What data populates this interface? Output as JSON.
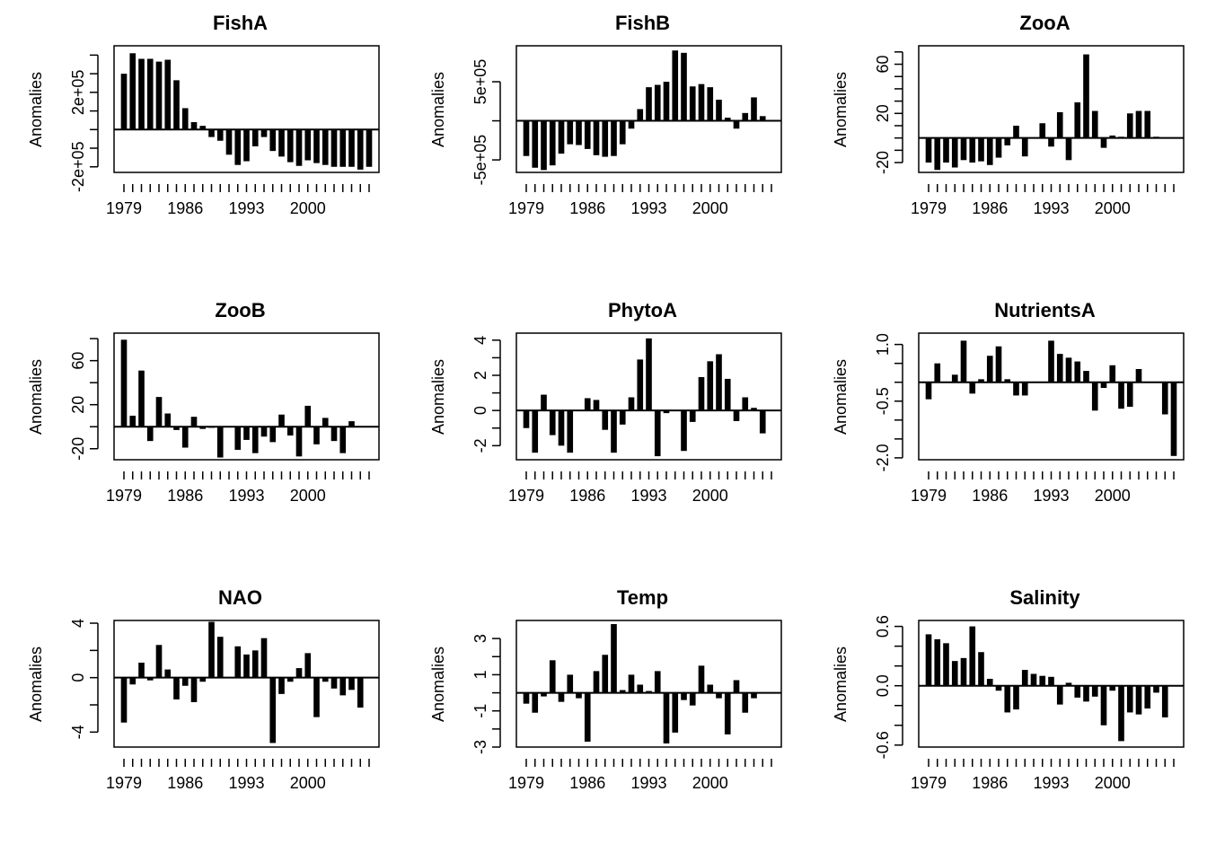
{
  "figure": {
    "panels_per_row": 3
  },
  "chart_data": [
    {
      "type": "bar",
      "title": "FishA",
      "ylabel": "Anomalies",
      "years": [
        1979,
        1980,
        1981,
        1982,
        1983,
        1984,
        1985,
        1986,
        1987,
        1988,
        1989,
        1990,
        1991,
        1992,
        1993,
        1994,
        1995,
        1996,
        1997,
        1998,
        1999,
        2000,
        2001,
        2002,
        2003,
        2004,
        2005,
        2006,
        2007
      ],
      "values": [
        300000,
        410000,
        380000,
        380000,
        365000,
        375000,
        265000,
        115000,
        40000,
        20000,
        -40000,
        -60000,
        -135000,
        -190000,
        -170000,
        -90000,
        -40000,
        -115000,
        -145000,
        -175000,
        -195000,
        -165000,
        -180000,
        -190000,
        -200000,
        -200000,
        -200000,
        -215000,
        -200000
      ],
      "ylim": [
        -230000,
        450000
      ],
      "yticks": [
        -200000,
        -100000,
        0,
        100000,
        200000,
        300000,
        400000
      ],
      "ytick_labels": [
        "-2e+05",
        "",
        "",
        "",
        "2e+05",
        "",
        ""
      ],
      "xtick_labels": [
        "1979",
        "1986",
        "1993",
        "2000"
      ]
    },
    {
      "type": "bar",
      "title": "FishB",
      "ylabel": "Anomalies",
      "years": [
        1979,
        1980,
        1981,
        1982,
        1983,
        1984,
        1985,
        1986,
        1987,
        1988,
        1989,
        1990,
        1991,
        1992,
        1993,
        1994,
        1995,
        1996,
        1997,
        1998,
        1999,
        2000,
        2001,
        2002,
        2003,
        2004,
        2005,
        2006,
        2007
      ],
      "values": [
        -450000,
        -600000,
        -630000,
        -570000,
        -420000,
        -300000,
        -310000,
        -360000,
        -440000,
        -460000,
        -450000,
        -300000,
        -100000,
        150000,
        430000,
        460000,
        500000,
        900000,
        870000,
        440000,
        470000,
        430000,
        270000,
        40000,
        -100000,
        100000,
        300000,
        60000,
        0
      ],
      "ylim": [
        -660000,
        960000
      ],
      "yticks": [
        -500000,
        0,
        500000
      ],
      "ytick_labels": [
        "-5e+05",
        "",
        "5e+05"
      ],
      "xtick_labels": [
        "1979",
        "1986",
        "1993",
        "2000"
      ]
    },
    {
      "type": "bar",
      "title": "ZooA",
      "ylabel": "Anomalies",
      "years": [
        1979,
        1980,
        1981,
        1982,
        1983,
        1984,
        1985,
        1986,
        1987,
        1988,
        1989,
        1990,
        1991,
        1992,
        1993,
        1994,
        1995,
        1996,
        1997,
        1998,
        1999,
        2000,
        2001,
        2002,
        2003,
        2004,
        2005,
        2006,
        2007
      ],
      "values": [
        -20,
        -26,
        -20,
        -24,
        -18,
        -20,
        -19,
        -22,
        -16,
        -6,
        10,
        -15,
        0,
        12,
        -7,
        21,
        -18,
        29,
        68,
        22,
        -8,
        2,
        1,
        20,
        22,
        22,
        1,
        0,
        0
      ],
      "ylim": [
        -28,
        75
      ],
      "yticks": [
        -20,
        -10,
        0,
        10,
        20,
        30,
        40,
        50,
        60,
        70
      ],
      "ytick_labels": [
        "-20",
        "",
        "",
        "",
        "20",
        "",
        "",
        "",
        "60",
        ""
      ],
      "xtick_labels": [
        "1979",
        "1986",
        "1993",
        "2000"
      ]
    },
    {
      "type": "bar",
      "title": "ZooB",
      "ylabel": "Anomalies",
      "years": [
        1979,
        1980,
        1981,
        1982,
        1983,
        1984,
        1985,
        1986,
        1987,
        1988,
        1989,
        1990,
        1991,
        1992,
        1993,
        1994,
        1995,
        1996,
        1997,
        1998,
        1999,
        2000,
        2001,
        2002,
        2003,
        2004,
        2005,
        2006,
        2007
      ],
      "values": [
        79,
        10,
        51,
        -13,
        27,
        12,
        -3,
        -19,
        9,
        -2,
        -1,
        -28,
        0,
        -21,
        -12,
        -24,
        -9,
        -14,
        11,
        -8,
        -27,
        19,
        -16,
        8,
        -13,
        -24,
        5,
        0,
        0
      ],
      "ylim": [
        -30,
        85
      ],
      "yticks": [
        -20,
        0,
        20,
        40,
        60,
        80
      ],
      "ytick_labels": [
        "-20",
        "",
        "20",
        "",
        "60",
        ""
      ],
      "xtick_labels": [
        "1979",
        "1986",
        "1993",
        "2000"
      ]
    },
    {
      "type": "bar",
      "title": "PhytoA",
      "ylabel": "Anomalies",
      "years": [
        1979,
        1980,
        1981,
        1982,
        1983,
        1984,
        1985,
        1986,
        1987,
        1988,
        1989,
        1990,
        1991,
        1992,
        1993,
        1994,
        1995,
        1996,
        1997,
        1998,
        1999,
        2000,
        2001,
        2002,
        2003,
        2004,
        2005,
        2006,
        2007
      ],
      "values": [
        -1.0,
        -2.4,
        0.9,
        -1.4,
        -2.0,
        -2.4,
        0.0,
        0.7,
        0.6,
        -1.1,
        -2.4,
        -0.8,
        0.75,
        2.9,
        4.1,
        -2.6,
        -0.15,
        0.0,
        -2.3,
        -0.65,
        1.9,
        2.8,
        3.2,
        1.8,
        -0.6,
        0.75,
        0.15,
        -1.3,
        0.0
      ],
      "ylim": [
        -2.8,
        4.4
      ],
      "yticks": [
        -2,
        -1,
        0,
        1,
        2,
        3,
        4
      ],
      "ytick_labels": [
        "-2",
        "",
        "0",
        "",
        "2",
        "",
        "4"
      ],
      "xtick_labels": [
        "1979",
        "1986",
        "1993",
        "2000"
      ]
    },
    {
      "type": "bar",
      "title": "NutrientsA",
      "ylabel": "Anomalies",
      "years": [
        1979,
        1980,
        1981,
        1982,
        1983,
        1984,
        1985,
        1986,
        1987,
        1988,
        1989,
        1990,
        1991,
        1992,
        1993,
        1994,
        1995,
        1996,
        1997,
        1998,
        1999,
        2000,
        2001,
        2002,
        2003,
        2004,
        2005,
        2006,
        2007
      ],
      "values": [
        -0.45,
        0.5,
        0.0,
        0.2,
        1.1,
        -0.3,
        0.08,
        0.7,
        0.95,
        0.08,
        -0.35,
        -0.35,
        0.0,
        0.0,
        1.1,
        0.75,
        0.65,
        0.55,
        0.3,
        -0.75,
        -0.15,
        0.45,
        -0.7,
        -0.65,
        0.35,
        0.0,
        0.0,
        -0.85,
        -1.95
      ],
      "ylim": [
        -2.05,
        1.3
      ],
      "yticks": [
        -2.0,
        -1.5,
        -1.0,
        -0.5,
        0.0,
        0.5,
        1.0
      ],
      "ytick_labels": [
        "-2.0",
        "",
        "",
        "-0.5",
        "",
        "",
        "1.0"
      ],
      "xtick_labels": [
        "1979",
        "1986",
        "1993",
        "2000"
      ]
    },
    {
      "type": "bar",
      "title": "NAO",
      "ylabel": "Anomalies",
      "years": [
        1979,
        1980,
        1981,
        1982,
        1983,
        1984,
        1985,
        1986,
        1987,
        1988,
        1989,
        1990,
        1991,
        1992,
        1993,
        1994,
        1995,
        1996,
        1997,
        1998,
        1999,
        2000,
        2001,
        2002,
        2003,
        2004,
        2005,
        2006,
        2007
      ],
      "values": [
        -3.3,
        -0.5,
        1.1,
        -0.2,
        2.4,
        0.6,
        -1.6,
        -0.6,
        -1.8,
        -0.3,
        4.1,
        3.0,
        0.0,
        2.3,
        1.7,
        2.0,
        2.9,
        -4.8,
        -1.2,
        -0.3,
        0.7,
        1.8,
        -2.9,
        -0.3,
        -0.8,
        -1.3,
        -0.9,
        -2.2,
        0.0
      ],
      "ylim": [
        -5.1,
        4.2
      ],
      "yticks": [
        -4,
        -2,
        0,
        2,
        4
      ],
      "ytick_labels": [
        "-4",
        "",
        "0",
        "",
        "4"
      ],
      "xtick_labels": [
        "1979",
        "1986",
        "1993",
        "2000"
      ]
    },
    {
      "type": "bar",
      "title": "Temp",
      "ylabel": "Anomalies",
      "years": [
        1979,
        1980,
        1981,
        1982,
        1983,
        1984,
        1985,
        1986,
        1987,
        1988,
        1989,
        1990,
        1991,
        1992,
        1993,
        1994,
        1995,
        1996,
        1997,
        1998,
        1999,
        2000,
        2001,
        2002,
        2003,
        2004,
        2005,
        2006,
        2007
      ],
      "values": [
        -0.6,
        -1.1,
        -0.2,
        1.8,
        -0.5,
        1.0,
        -0.3,
        -2.7,
        1.2,
        2.1,
        3.8,
        0.15,
        1.0,
        0.45,
        0.1,
        1.2,
        -2.8,
        -2.2,
        -0.4,
        -0.7,
        1.5,
        0.45,
        -0.3,
        -2.3,
        0.7,
        -1.1,
        -0.3,
        0.0,
        0.0
      ],
      "ylim": [
        -3.0,
        4.0
      ],
      "yticks": [
        -3,
        -2,
        -1,
        0,
        1,
        2,
        3
      ],
      "ytick_labels": [
        "-3",
        "",
        "-1",
        "",
        "1",
        "",
        "3"
      ],
      "xtick_labels": [
        "1979",
        "1986",
        "1993",
        "2000"
      ]
    },
    {
      "type": "bar",
      "title": "Salinity",
      "ylabel": "Anomalies",
      "years": [
        1979,
        1980,
        1981,
        1982,
        1983,
        1984,
        1985,
        1986,
        1987,
        1988,
        1989,
        1990,
        1991,
        1992,
        1993,
        1994,
        1995,
        1996,
        1997,
        1998,
        1999,
        2000,
        2001,
        2002,
        2003,
        2004,
        2005,
        2006,
        2007
      ],
      "values": [
        0.52,
        0.47,
        0.43,
        0.25,
        0.28,
        0.6,
        0.34,
        0.07,
        -0.05,
        -0.27,
        -0.24,
        0.16,
        0.12,
        0.1,
        0.09,
        -0.19,
        0.03,
        -0.12,
        -0.16,
        -0.11,
        -0.4,
        -0.05,
        -0.56,
        -0.27,
        -0.29,
        -0.23,
        -0.07,
        -0.32,
        0.0
      ],
      "ylim": [
        -0.62,
        0.66
      ],
      "yticks": [
        -0.6,
        -0.4,
        -0.2,
        0.0,
        0.2,
        0.4,
        0.6
      ],
      "ytick_labels": [
        "-0.6",
        "",
        "",
        "0.0",
        "",
        "",
        "0.6"
      ],
      "xtick_labels": [
        "1979",
        "1986",
        "1993",
        "2000"
      ]
    }
  ]
}
